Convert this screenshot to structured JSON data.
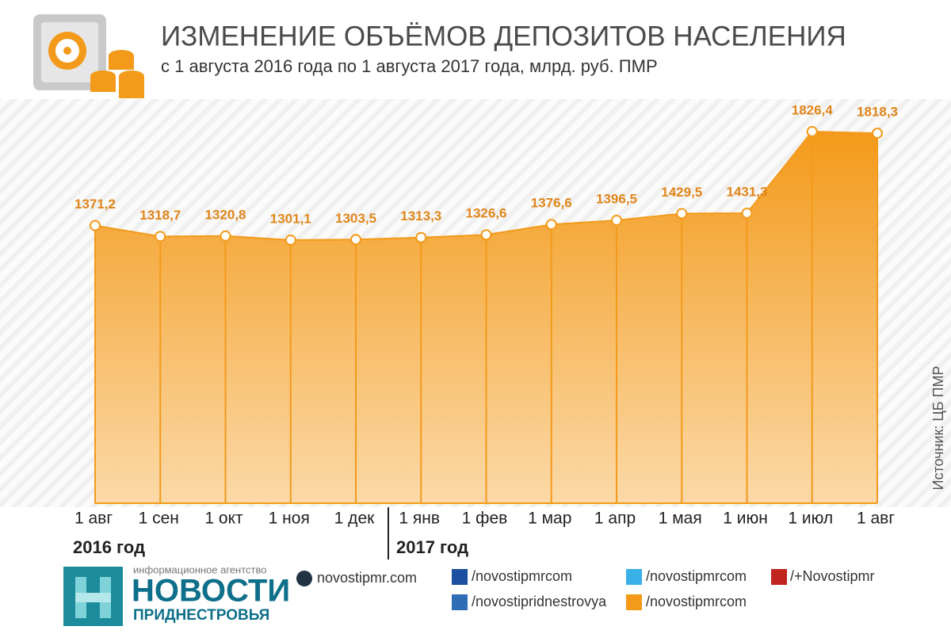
{
  "chart_data": {
    "type": "area",
    "title": "ИЗМЕНЕНИЕ ОБЪЁМОВ ДЕПОЗИТОВ НАСЕЛЕНИЯ",
    "subtitle": "с 1 августа 2016 года по 1 августа 2017 года, млрд. руб. ПМР",
    "categories": [
      "1 авг",
      "1 сен",
      "1 окт",
      "1 ноя",
      "1 дек",
      "1 янв",
      "1 фев",
      "1 мар",
      "1 апр",
      "1 мая",
      "1 июн",
      "1 июл",
      "1 авг"
    ],
    "values": [
      1371.2,
      1318.7,
      1320.8,
      1301.1,
      1303.5,
      1313.3,
      1326.6,
      1376.6,
      1396.5,
      1429.5,
      1431.3,
      1826.4,
      1818.3
    ],
    "value_labels": [
      "1371,2",
      "1318,7",
      "1320,8",
      "1301,1",
      "1303,5",
      "1313,3",
      "1326,6",
      "1376,6",
      "1396,5",
      "1429,5",
      "1431,3",
      "1826,4",
      "1818,3"
    ],
    "color": "#f39a1a",
    "year_labels": [
      "2016 год",
      "2017 год"
    ],
    "source": "Источник: ЦБ ПМР"
  },
  "footer": {
    "agency": "информационное агентство",
    "brand": "НОВОСТИ",
    "brand_sub": "ПРИДНЕСТРОВЬЯ",
    "links": [
      "novostipmr.com",
      "/novostipmrcom",
      "/novostipridnestrovya",
      "/novostipmrcom",
      "/novostipmrcom",
      "/+Novostipmr"
    ]
  }
}
